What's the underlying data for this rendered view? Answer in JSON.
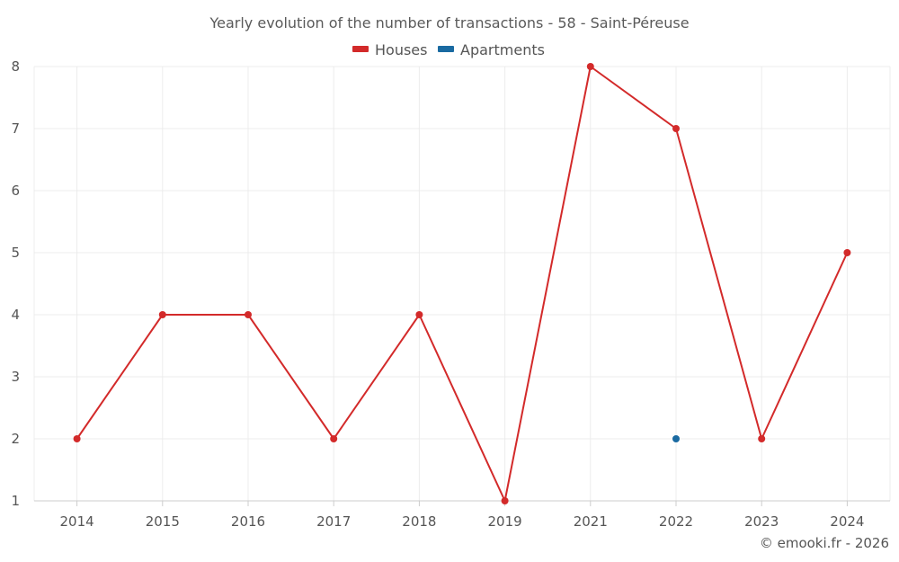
{
  "chart_data": {
    "type": "line",
    "title": "Yearly evolution of the number of transactions - 58 - Saint-Péreuse",
    "categories": [
      "2014",
      "2015",
      "2016",
      "2017",
      "2018",
      "2019",
      "2021",
      "2022",
      "2023",
      "2024"
    ],
    "ylim": [
      1,
      8
    ],
    "yticks": [
      "1",
      "2",
      "3",
      "4",
      "5",
      "6",
      "7",
      "8"
    ],
    "grid": true,
    "legend_position": "top-center",
    "series": [
      {
        "name": "Houses",
        "color": "#d32a2a",
        "values": [
          2,
          4,
          4,
          2,
          4,
          1,
          8,
          7,
          2,
          5
        ],
        "line": true
      },
      {
        "name": "Apartments",
        "color": "#1a6aa1",
        "values": [
          null,
          null,
          null,
          null,
          null,
          null,
          null,
          2,
          null,
          null
        ],
        "line": false
      }
    ],
    "xlabel": "",
    "ylabel": ""
  },
  "credit": "© emooki.fr - 2026"
}
